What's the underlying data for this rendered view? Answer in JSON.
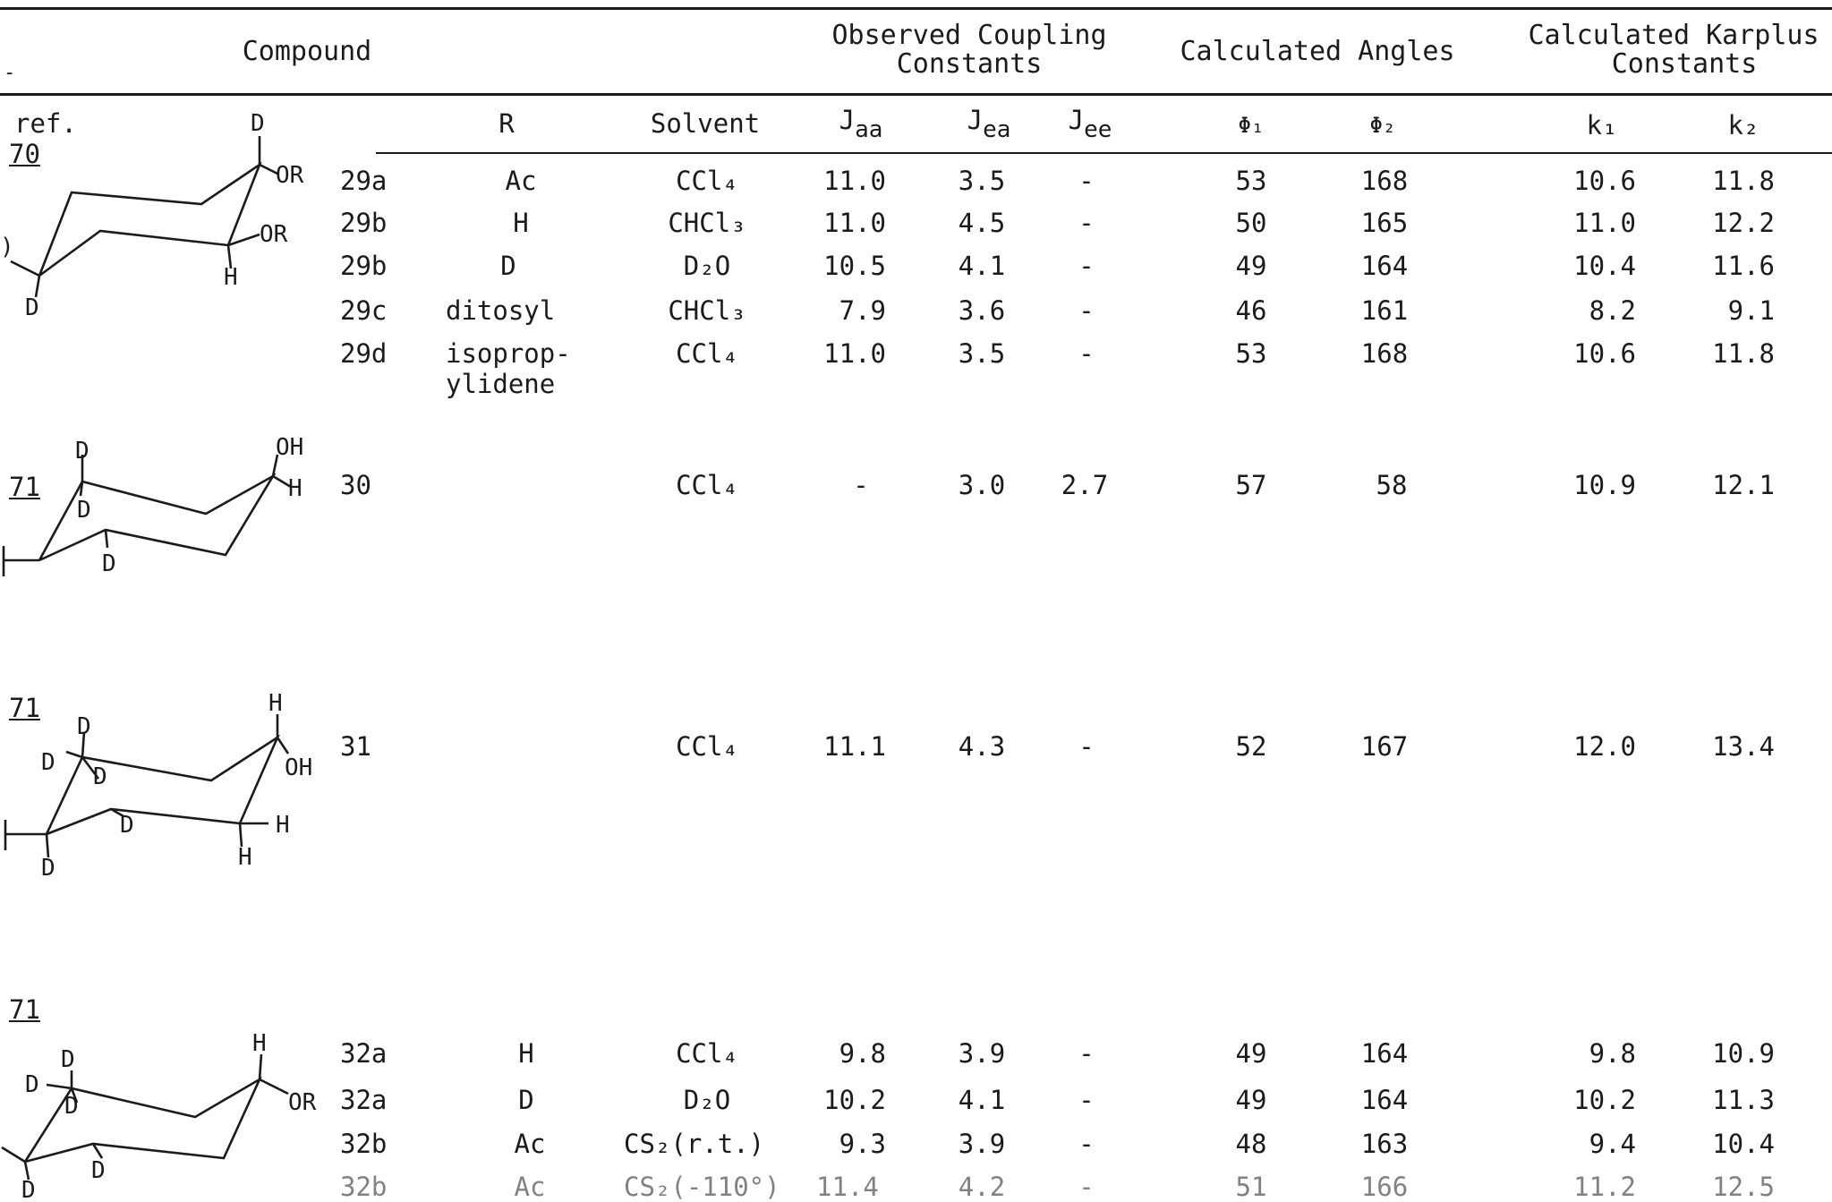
{
  "header": {
    "compound": "Compound",
    "observed_l1": "Observed Coupling",
    "observed_l2": "Constants",
    "angles": "Calculated Angles",
    "karplus_l1": "Calculated Karplus",
    "karplus_l2": "Constants",
    "dash_mark": "-"
  },
  "subheader": {
    "ref": "ref.",
    "r": "R",
    "solvent": "Solvent",
    "jaa_main": "J",
    "jaa_sub": "aa",
    "jea_main": "J",
    "jea_sub": "ea",
    "jee_main": "J",
    "jee_sub": "ee",
    "phi1": "Φ₁",
    "phi2": "Φ₂",
    "k1": "k₁",
    "k2": "k₂"
  },
  "refs": [
    "70",
    "71",
    "71",
    "71"
  ],
  "rows": [
    {
      "id": "29a",
      "r": "Ac",
      "solvent": "CCl₄",
      "jaa": "11.0",
      "jea": "3.5",
      "jee": "-",
      "phi1": "53",
      "phi2": "168",
      "k1": "10.6",
      "k2": "11.8"
    },
    {
      "id": "29b",
      "r": "H",
      "solvent": "CHCl₃",
      "jaa": "11.0",
      "jea": "4.5",
      "jee": "-",
      "phi1": "50",
      "phi2": "165",
      "k1": "11.0",
      "k2": "12.2"
    },
    {
      "id": "29b",
      "r": "D",
      "solvent": "D₂O",
      "jaa": "10.5",
      "jea": "4.1",
      "jee": "-",
      "phi1": "49",
      "phi2": "164",
      "k1": "10.4",
      "k2": "11.6"
    },
    {
      "id": "29c",
      "r": "ditosyl",
      "solvent": "CHCl₃",
      "jaa": "7.9",
      "jea": "3.6",
      "jee": "-",
      "phi1": "46",
      "phi2": "161",
      "k1": "8.2",
      "k2": "9.1"
    },
    {
      "id": "29d",
      "r": "isoprop-",
      "r2": "ylidene",
      "solvent": "CCl₄",
      "jaa": "11.0",
      "jea": "3.5",
      "jee": "-",
      "phi1": "53",
      "phi2": "168",
      "k1": "10.6",
      "k2": "11.8"
    },
    {
      "id": "30",
      "r": "",
      "solvent": "CCl₄",
      "jaa": "-",
      "jea": "3.0",
      "jee": "2.7",
      "phi1": "57",
      "phi2": "58",
      "k1": "10.9",
      "k2": "12.1"
    },
    {
      "id": "31",
      "r": "",
      "solvent": "CCl₄",
      "jaa": "11.1",
      "jea": "4.3",
      "jee": "-",
      "phi1": "52",
      "phi2": "167",
      "k1": "12.0",
      "k2": "13.4"
    },
    {
      "id": "32a",
      "r": "H",
      "solvent": "CCl₄",
      "jaa": "9.8",
      "jea": "3.9",
      "jee": "-",
      "phi1": "49",
      "phi2": "164",
      "k1": "9.8",
      "k2": "10.9"
    },
    {
      "id": "32a",
      "r": "D",
      "solvent": "D₂O",
      "jaa": "10.2",
      "jea": "4.1",
      "jee": "-",
      "phi1": "49",
      "phi2": "164",
      "k1": "10.2",
      "k2": "11.3"
    },
    {
      "id": "32b",
      "r": "Ac",
      "solvent": "CS₂(r.t.)",
      "jaa": "9.3",
      "jea": "3.9",
      "jee": "-",
      "phi1": "48",
      "phi2": "163",
      "k1": "9.4",
      "k2": "10.4"
    },
    {
      "id": "32b",
      "r": "Ac",
      "solvent": "CS₂(-110°)",
      "jaa": "11.4",
      "jea": "4.2",
      "jee": "-",
      "phi1": "51",
      "phi2": "166",
      "k1": "11.2",
      "k2": "12.5"
    }
  ],
  "structures": {
    "s1": {
      "d_top": "D",
      "or_top": "OR",
      "or_mid": "OR",
      "h": "H",
      "d_bot": "D",
      "paren": ")"
    },
    "s2": {
      "d1": "D",
      "d2": "D",
      "d3": "D",
      "oh": "OH",
      "h": "H"
    },
    "s3": {
      "h_top": "H",
      "oh": "OH",
      "d1": "D",
      "d2": "D",
      "d3": "D",
      "d4": "D",
      "d5": "D",
      "h1": "H",
      "h2": "H"
    },
    "s4": {
      "h_top": "H",
      "or": "OR",
      "d1": "D",
      "d2": "D",
      "d3": "D",
      "d4": "D",
      "d5": "D"
    }
  }
}
